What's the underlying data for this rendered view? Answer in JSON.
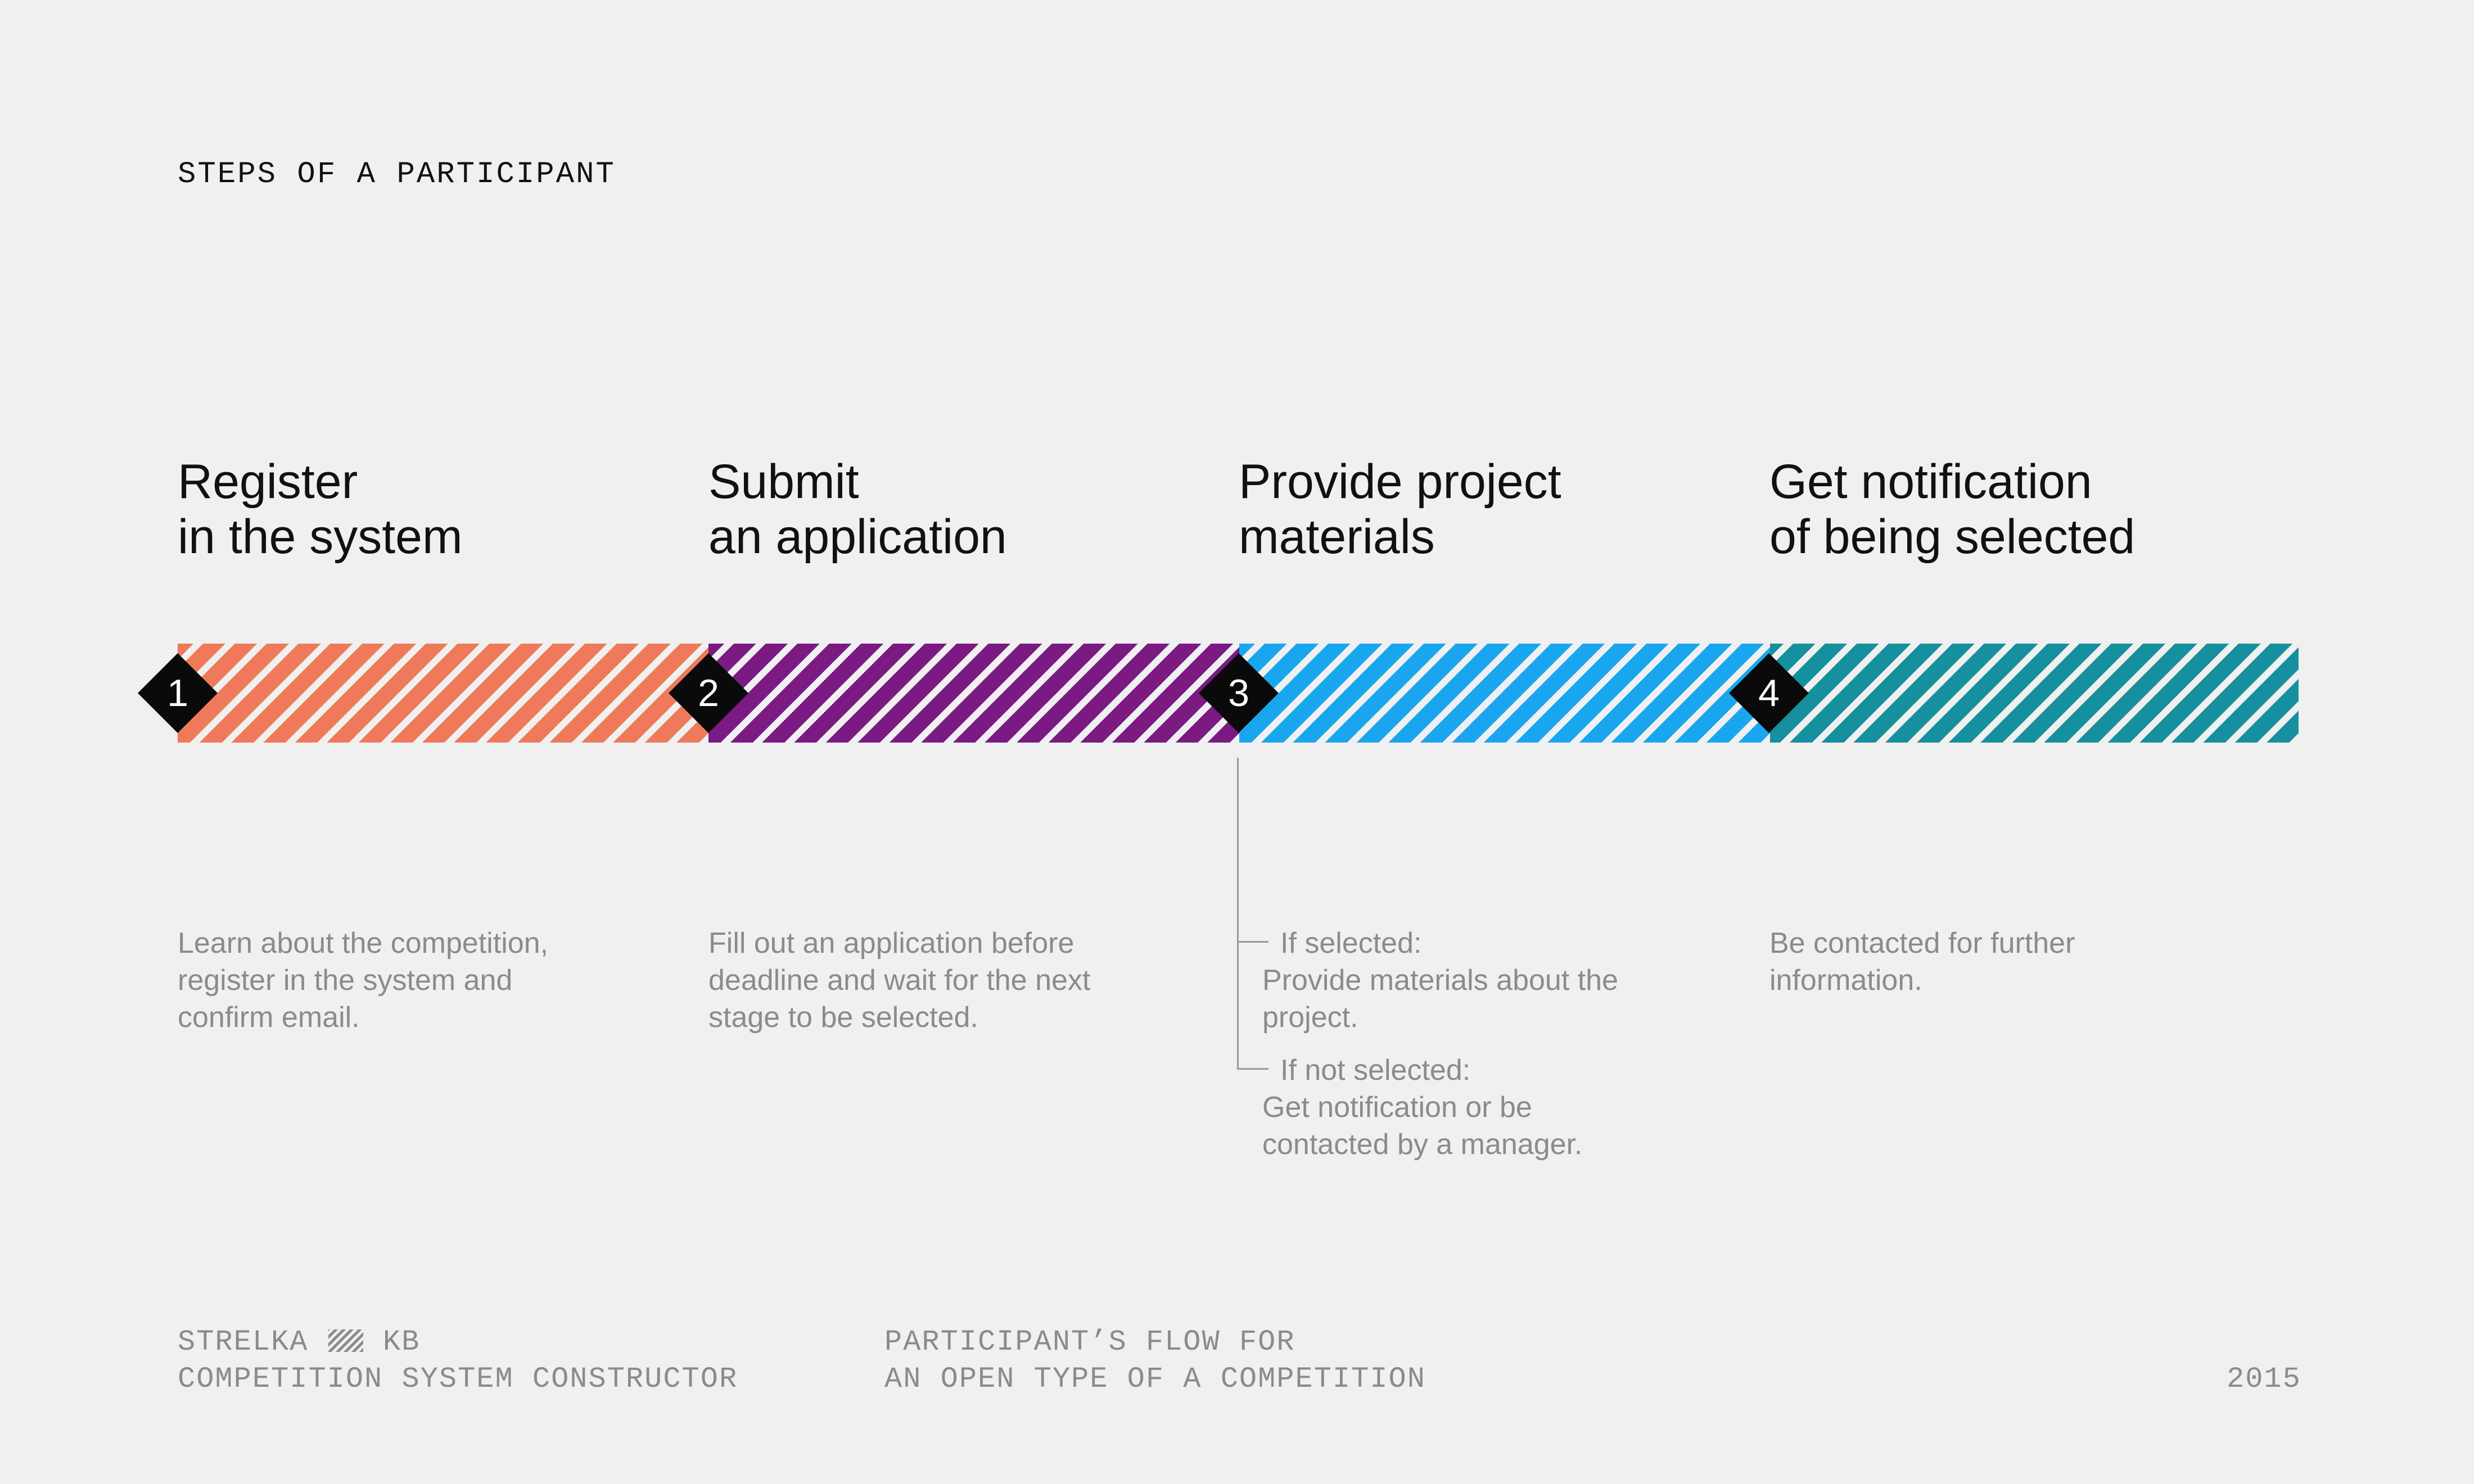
{
  "page_title": "STEPS OF A PARTICIPANT",
  "colors": {
    "background": "#f0f0f0",
    "step_1": "#ef7a5a",
    "step_2": "#7a1a82",
    "step_3": "#1aa6ef",
    "step_4": "#16909e",
    "marker": "#0a0a0a"
  },
  "steps": [
    {
      "number": "1",
      "title_line_1": "Register",
      "title_line_2": "in the system",
      "desc_lines": [
        "Learn about the competition,",
        "register in the system and",
        "confirm email."
      ]
    },
    {
      "number": "2",
      "title_line_1": "Submit",
      "title_line_2": "an application",
      "desc_lines": [
        "Fill out an application before",
        "deadline and wait for the next",
        "stage to be selected."
      ]
    },
    {
      "number": "3",
      "title_line_1": "Provide project",
      "title_line_2": "materials",
      "branches": [
        {
          "label": "If selected:",
          "lines": [
            "Provide materials about the",
            "project."
          ]
        },
        {
          "label": "If not selected:",
          "lines": [
            "Get notification or be",
            "contacted by a manager."
          ]
        }
      ]
    },
    {
      "number": "4",
      "title_line_1": "Get notification",
      "title_line_2": "of being selected",
      "desc_lines": [
        "Be contacted for further",
        "information."
      ]
    }
  ],
  "footer": {
    "brand_left": "STRELKA",
    "brand_right": "KB",
    "brand_icon": "hatched-pattern-icon",
    "subtitle": "COMPETITION SYSTEM CONSTRUCTOR",
    "flow_line_1": "PARTICIPANT’S FLOW FOR",
    "flow_line_2": "AN OPEN TYPE OF A COMPETITION",
    "year": "2015"
  }
}
